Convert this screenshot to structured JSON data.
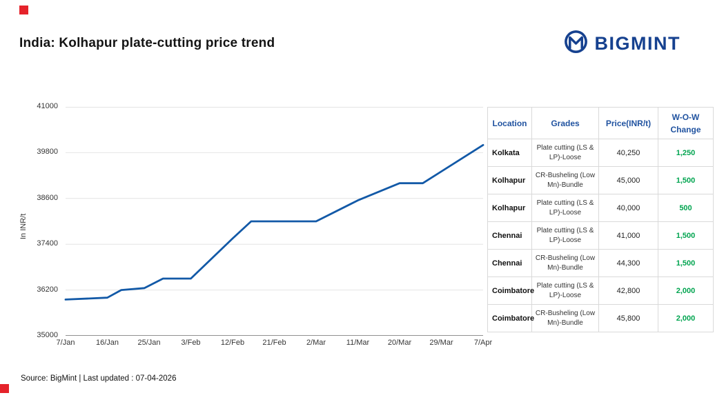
{
  "page": {
    "title": "India: Kolhapur plate-cutting price trend",
    "source_note": "Source: BigMint | Last updated : 07-04-2026",
    "accent_color": "#e5232b"
  },
  "logo": {
    "text": "BIGMINT",
    "color": "#16418f",
    "icon": "bigmint-m-emblem-icon"
  },
  "chart_data": {
    "type": "line",
    "title": "India: Kolhapur plate-cutting price trend",
    "xlabel": "",
    "ylabel": "In INR/t",
    "ylim": [
      35000,
      41000
    ],
    "yticks": [
      35000,
      36200,
      37400,
      38600,
      39800,
      41000
    ],
    "xticks": [
      "7/Jan",
      "16/Jan",
      "25/Jan",
      "3/Feb",
      "12/Feb",
      "21/Feb",
      "2/Mar",
      "11/Mar",
      "20/Mar",
      "29/Mar",
      "7/Apr"
    ],
    "xmax_day": 90,
    "grid": true,
    "legend": false,
    "line_color": "#1259a7",
    "series": [
      {
        "name": "Kolhapur plate cutting (LS & LP)-Loose price",
        "color": "#1259a7",
        "points": [
          {
            "date": "7/Jan",
            "day": 0,
            "value": 35950
          },
          {
            "date": "16/Jan",
            "day": 9,
            "value": 36000
          },
          {
            "date": "19/Jan",
            "day": 12,
            "value": 36200
          },
          {
            "date": "24/Jan",
            "day": 17,
            "value": 36250
          },
          {
            "date": "28/Jan",
            "day": 21,
            "value": 36500
          },
          {
            "date": "3/Feb",
            "day": 27,
            "value": 36500
          },
          {
            "date": "12/Feb",
            "day": 36,
            "value": 37550
          },
          {
            "date": "16/Feb",
            "day": 40,
            "value": 38000
          },
          {
            "date": "2/Mar",
            "day": 54,
            "value": 38000
          },
          {
            "date": "11/Mar",
            "day": 63,
            "value": 38550
          },
          {
            "date": "20/Mar",
            "day": 72,
            "value": 39000
          },
          {
            "date": "25/Mar",
            "day": 77,
            "value": 39000
          },
          {
            "date": "7/Apr",
            "day": 90,
            "value": 40000
          }
        ]
      }
    ]
  },
  "table": {
    "headers": [
      "Location",
      "Grades",
      "Price(INR/t)",
      "W-O-W Change"
    ],
    "wow_color": "#00a44f",
    "header_color": "#2153a0",
    "rows": [
      {
        "location": "Kolkata",
        "grade": "Plate cutting (LS & LP)-Loose",
        "price": "40,250",
        "wow": "1,250"
      },
      {
        "location": "Kolhapur",
        "grade": "CR-Busheling (Low Mn)-Bundle",
        "price": "45,000",
        "wow": "1,500"
      },
      {
        "location": "Kolhapur",
        "grade": "Plate cutting (LS & LP)-Loose",
        "price": "40,000",
        "wow": "500"
      },
      {
        "location": "Chennai",
        "grade": "Plate cutting (LS & LP)-Loose",
        "price": "41,000",
        "wow": "1,500"
      },
      {
        "location": "Chennai",
        "grade": "CR-Busheling (Low Mn)-Bundle",
        "price": "44,300",
        "wow": "1,500"
      },
      {
        "location": "Coimbatore",
        "grade": "Plate cutting (LS & LP)-Loose",
        "price": "42,800",
        "wow": "2,000"
      },
      {
        "location": "Coimbatore",
        "grade": "CR-Busheling (Low Mn)-Bundle",
        "price": "45,800",
        "wow": "2,000"
      }
    ]
  }
}
